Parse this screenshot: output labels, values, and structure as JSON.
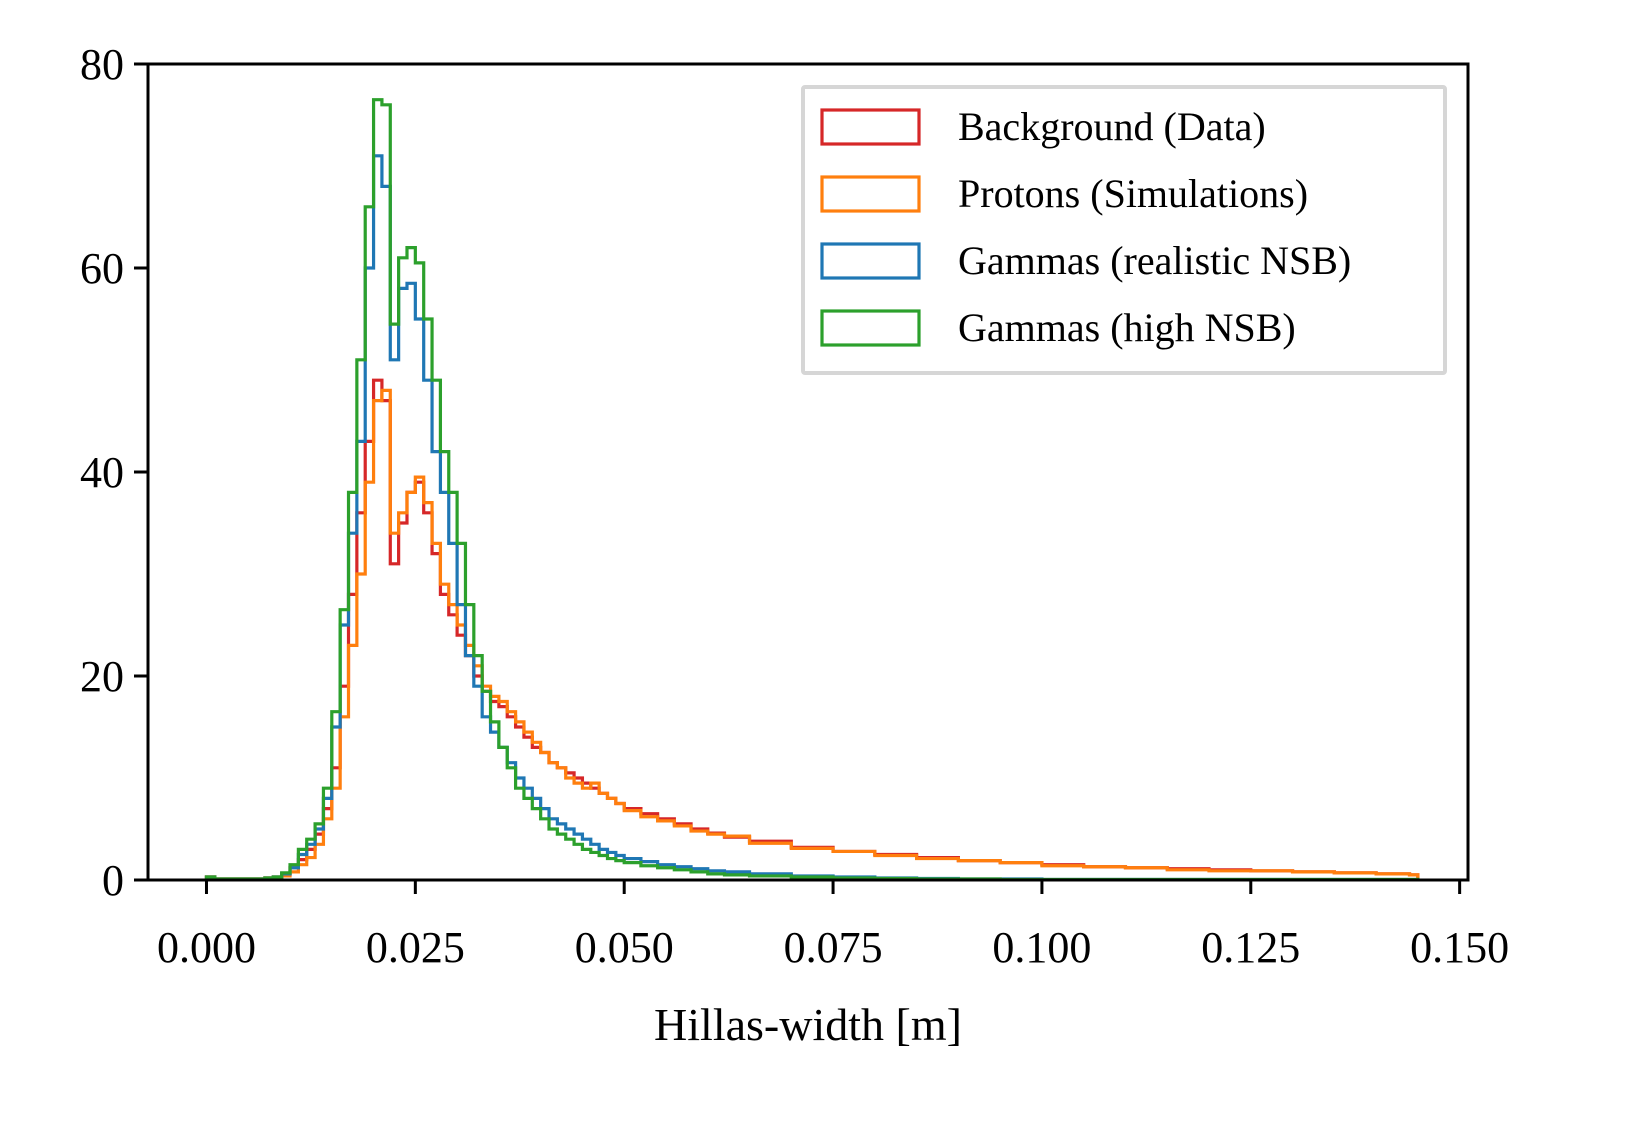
{
  "chart_data": {
    "type": "histogram-step",
    "title": "",
    "xlabel": "Hillas-width [m]",
    "ylabel": "",
    "xlim": [
      -0.007,
      0.151
    ],
    "ylim": [
      0,
      80
    ],
    "xticks": [
      0.0,
      0.025,
      0.05,
      0.075,
      0.1,
      0.125,
      0.15
    ],
    "xtick_labels": [
      "0.000",
      "0.025",
      "0.050",
      "0.075",
      "0.100",
      "0.125",
      "0.150"
    ],
    "yticks": [
      0,
      20,
      40,
      60,
      80
    ],
    "ytick_labels": [
      "0",
      "20",
      "40",
      "60",
      "80"
    ],
    "bin_width": 0.001,
    "legend_position": "upper-right",
    "series": [
      {
        "name": "Background (Data)",
        "color": "#d62728",
        "x": [
          0.0,
          0.001,
          0.002,
          0.003,
          0.004,
          0.005,
          0.006,
          0.007,
          0.008,
          0.009,
          0.01,
          0.011,
          0.012,
          0.013,
          0.014,
          0.015,
          0.016,
          0.017,
          0.018,
          0.019,
          0.02,
          0.021,
          0.022,
          0.023,
          0.024,
          0.025,
          0.026,
          0.027,
          0.028,
          0.029,
          0.03,
          0.031,
          0.032,
          0.033,
          0.034,
          0.035,
          0.036,
          0.037,
          0.038,
          0.039,
          0.04,
          0.041,
          0.042,
          0.043,
          0.044,
          0.045,
          0.046,
          0.047,
          0.048,
          0.049,
          0.05,
          0.052,
          0.054,
          0.056,
          0.058,
          0.06,
          0.062,
          0.065,
          0.07,
          0.075,
          0.08,
          0.085,
          0.09,
          0.095,
          0.1,
          0.105,
          0.11,
          0.115,
          0.12,
          0.125,
          0.13,
          0.135,
          0.14,
          0.144
        ],
        "values": [
          0.3,
          0.1,
          0.1,
          0.1,
          0.1,
          0.1,
          0.1,
          0.2,
          0.3,
          0.6,
          1.2,
          2.0,
          3.0,
          4.5,
          7.0,
          11.0,
          19.0,
          28.0,
          36.0,
          43.0,
          49.0,
          47.0,
          31.0,
          35.0,
          38.0,
          39.0,
          36.0,
          32.0,
          28.0,
          26.0,
          24.0,
          22.0,
          20.0,
          18.5,
          17.5,
          17.0,
          16.0,
          15.0,
          14.0,
          13.0,
          12.5,
          11.5,
          11.0,
          10.5,
          10.0,
          9.5,
          9.0,
          8.5,
          8.0,
          7.5,
          7.0,
          6.5,
          6.0,
          5.5,
          5.0,
          4.6,
          4.2,
          3.8,
          3.2,
          2.8,
          2.5,
          2.2,
          1.9,
          1.7,
          1.5,
          1.3,
          1.2,
          1.1,
          1.0,
          0.9,
          0.8,
          0.7,
          0.6,
          0.5
        ]
      },
      {
        "name": "Protons (Simulations)",
        "color": "#ff7f0e",
        "x": [
          0.0,
          0.001,
          0.002,
          0.003,
          0.004,
          0.005,
          0.006,
          0.007,
          0.008,
          0.009,
          0.01,
          0.011,
          0.012,
          0.013,
          0.014,
          0.015,
          0.016,
          0.017,
          0.018,
          0.019,
          0.02,
          0.021,
          0.022,
          0.023,
          0.024,
          0.025,
          0.026,
          0.027,
          0.028,
          0.029,
          0.03,
          0.031,
          0.032,
          0.033,
          0.034,
          0.035,
          0.036,
          0.037,
          0.038,
          0.039,
          0.04,
          0.041,
          0.042,
          0.043,
          0.044,
          0.045,
          0.046,
          0.047,
          0.048,
          0.049,
          0.05,
          0.052,
          0.054,
          0.056,
          0.058,
          0.06,
          0.062,
          0.065,
          0.07,
          0.075,
          0.08,
          0.085,
          0.09,
          0.095,
          0.1,
          0.105,
          0.11,
          0.115,
          0.12,
          0.125,
          0.13,
          0.135,
          0.14,
          0.144
        ],
        "values": [
          0.3,
          0.1,
          0.1,
          0.1,
          0.1,
          0.1,
          0.1,
          0.2,
          0.2,
          0.4,
          0.8,
          1.5,
          2.2,
          3.5,
          6.0,
          9.0,
          16.0,
          23.0,
          30.0,
          39.0,
          47.0,
          48.0,
          34.0,
          36.0,
          38.0,
          39.5,
          37.0,
          33.0,
          29.0,
          27.0,
          25.0,
          23.0,
          21.0,
          19.0,
          18.0,
          17.5,
          16.5,
          15.5,
          14.5,
          13.5,
          12.5,
          11.5,
          11.0,
          10.0,
          9.5,
          9.0,
          9.5,
          8.5,
          8.0,
          7.5,
          6.8,
          6.2,
          5.8,
          5.3,
          4.8,
          4.5,
          4.3,
          3.6,
          3.1,
          2.8,
          2.4,
          2.1,
          1.9,
          1.7,
          1.4,
          1.3,
          1.2,
          1.0,
          0.9,
          0.9,
          0.8,
          0.7,
          0.6,
          0.5
        ]
      },
      {
        "name": "Gammas (realistic NSB)",
        "color": "#1f77b4",
        "x": [
          0.0,
          0.001,
          0.002,
          0.003,
          0.004,
          0.005,
          0.006,
          0.007,
          0.008,
          0.009,
          0.01,
          0.011,
          0.012,
          0.013,
          0.014,
          0.015,
          0.016,
          0.017,
          0.018,
          0.019,
          0.02,
          0.021,
          0.022,
          0.023,
          0.024,
          0.025,
          0.026,
          0.027,
          0.028,
          0.029,
          0.03,
          0.031,
          0.032,
          0.033,
          0.034,
          0.035,
          0.036,
          0.037,
          0.038,
          0.039,
          0.04,
          0.041,
          0.042,
          0.043,
          0.044,
          0.045,
          0.046,
          0.047,
          0.048,
          0.049,
          0.05,
          0.052,
          0.054,
          0.056,
          0.058,
          0.06,
          0.062,
          0.065,
          0.07,
          0.075,
          0.08,
          0.085,
          0.09,
          0.095,
          0.1,
          0.11,
          0.12,
          0.13,
          0.14,
          0.144
        ],
        "values": [
          0.3,
          0.1,
          0.1,
          0.1,
          0.1,
          0.1,
          0.1,
          0.2,
          0.3,
          0.6,
          1.2,
          2.5,
          3.5,
          5.0,
          8.0,
          15.0,
          25.0,
          34.0,
          43.0,
          60.0,
          71.0,
          68.0,
          51.0,
          58.0,
          58.5,
          55.0,
          49.0,
          42.0,
          38.0,
          33.0,
          27.0,
          22.0,
          19.0,
          16.0,
          14.5,
          13.0,
          11.5,
          10.0,
          9.0,
          8.0,
          7.0,
          6.0,
          5.5,
          5.0,
          4.5,
          4.0,
          3.5,
          3.0,
          2.7,
          2.4,
          2.1,
          1.8,
          1.5,
          1.3,
          1.1,
          0.9,
          0.8,
          0.6,
          0.4,
          0.3,
          0.2,
          0.15,
          0.1,
          0.1,
          0.05,
          0.05,
          0.05,
          0.05,
          0.05,
          0.05
        ]
      },
      {
        "name": "Gammas (high NSB)",
        "color": "#2ca02c",
        "x": [
          0.0,
          0.001,
          0.002,
          0.003,
          0.004,
          0.005,
          0.006,
          0.007,
          0.008,
          0.009,
          0.01,
          0.011,
          0.012,
          0.013,
          0.014,
          0.015,
          0.016,
          0.017,
          0.018,
          0.019,
          0.02,
          0.021,
          0.022,
          0.023,
          0.024,
          0.025,
          0.026,
          0.027,
          0.028,
          0.029,
          0.03,
          0.031,
          0.032,
          0.033,
          0.034,
          0.035,
          0.036,
          0.037,
          0.038,
          0.039,
          0.04,
          0.041,
          0.042,
          0.043,
          0.044,
          0.045,
          0.046,
          0.047,
          0.048,
          0.049,
          0.05,
          0.052,
          0.054,
          0.056,
          0.058,
          0.06,
          0.062,
          0.065,
          0.07,
          0.075,
          0.08,
          0.085,
          0.09,
          0.095,
          0.1,
          0.11,
          0.12,
          0.13,
          0.14,
          0.144
        ],
        "values": [
          0.3,
          0.1,
          0.1,
          0.1,
          0.1,
          0.1,
          0.1,
          0.2,
          0.3,
          0.7,
          1.5,
          3.0,
          4.0,
          5.5,
          9.0,
          16.5,
          26.5,
          38.0,
          51.0,
          66.0,
          76.5,
          76.0,
          54.5,
          61.0,
          62.0,
          60.5,
          55.0,
          49.0,
          42.0,
          38.0,
          33.0,
          27.0,
          22.0,
          18.5,
          15.5,
          13.0,
          11.0,
          9.0,
          8.0,
          7.0,
          6.0,
          5.0,
          4.5,
          4.0,
          3.5,
          3.0,
          2.7,
          2.4,
          2.1,
          1.9,
          1.7,
          1.4,
          1.2,
          1.0,
          0.8,
          0.6,
          0.5,
          0.4,
          0.3,
          0.2,
          0.15,
          0.1,
          0.1,
          0.05,
          0.05,
          0.05,
          0.05,
          0.05,
          0.05,
          0.05
        ]
      }
    ]
  }
}
